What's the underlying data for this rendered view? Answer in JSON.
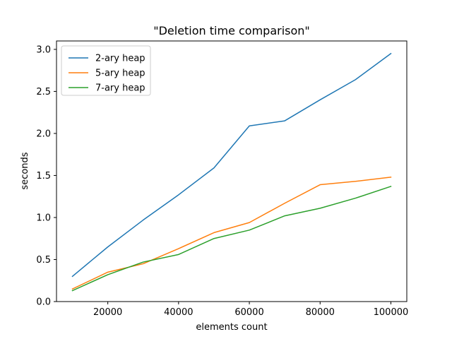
{
  "chart_data": {
    "type": "line",
    "title": "\"Deletion time comparison\"",
    "xlabel": "elements count",
    "ylabel": "seconds",
    "x": [
      10000,
      20000,
      30000,
      40000,
      50000,
      60000,
      70000,
      80000,
      90000,
      100000
    ],
    "xlim": [
      5500,
      104500
    ],
    "ylim": [
      0,
      3.1
    ],
    "xticks": [
      20000,
      40000,
      60000,
      80000,
      100000
    ],
    "xtick_labels": [
      "20000",
      "40000",
      "60000",
      "80000",
      "100000"
    ],
    "yticks": [
      0,
      0.5,
      1,
      1.5,
      2,
      2.5,
      3
    ],
    "ytick_labels": [
      "0.0",
      "0.5",
      "1.0",
      "1.5",
      "2.0",
      "2.5",
      "3.0"
    ],
    "grid": false,
    "legend_position": "top-left",
    "series": [
      {
        "name": "2-ary heap",
        "color": "#1f77b4",
        "values": [
          0.3,
          0.65,
          0.97,
          1.27,
          1.59,
          2.09,
          2.15,
          2.4,
          2.64,
          2.95
        ]
      },
      {
        "name": "5-ary heap",
        "color": "#ff7f0e",
        "values": [
          0.15,
          0.35,
          0.45,
          0.63,
          0.82,
          0.94,
          1.17,
          1.39,
          1.43,
          1.48
        ]
      },
      {
        "name": "7-ary heap",
        "color": "#2ca02c",
        "values": [
          0.13,
          0.32,
          0.47,
          0.56,
          0.75,
          0.85,
          1.02,
          1.11,
          1.23,
          1.37
        ]
      }
    ]
  }
}
